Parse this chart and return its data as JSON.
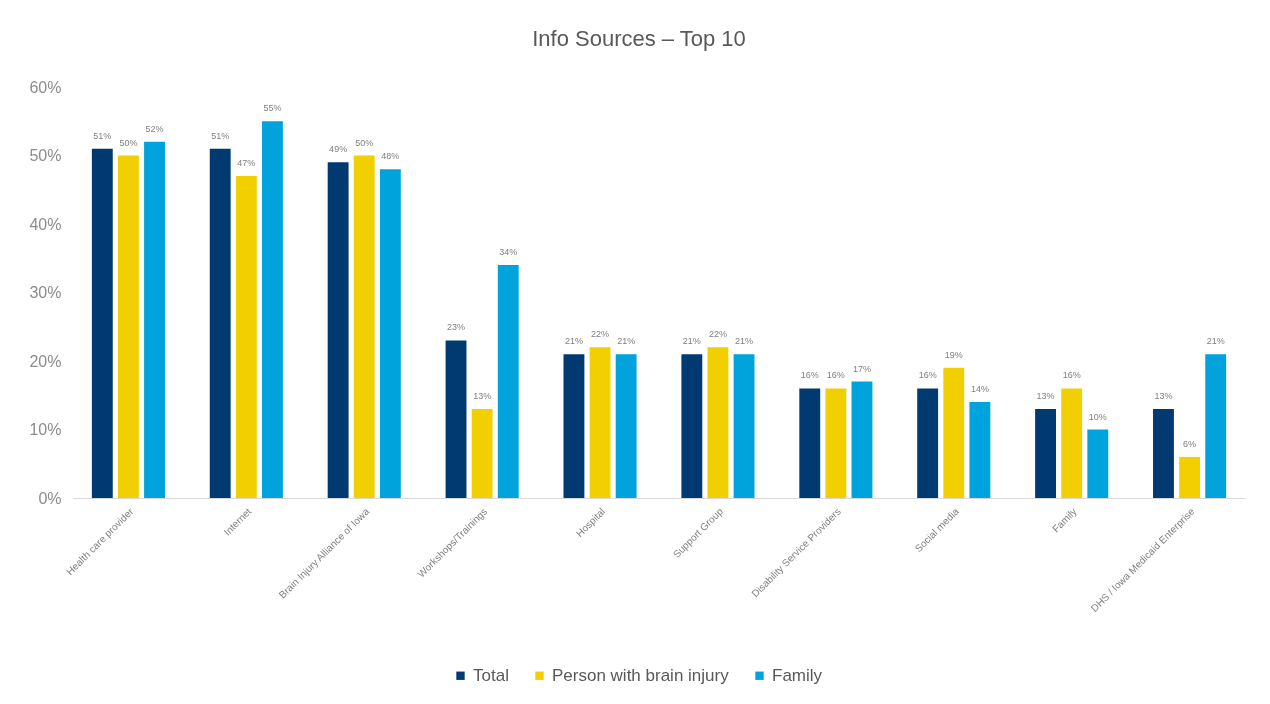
{
  "chart_data": {
    "type": "bar",
    "title": "Info Sources – Top 10",
    "categories": [
      "Health care provider",
      "Internet",
      "Brain Injury Alliance of Iowa",
      "Workshops/Trainings",
      "Hospital",
      "Support Group",
      "Disability Service Providers",
      "Social media",
      "Family",
      "DHS / Iowa Medicaid Enterprise"
    ],
    "series": [
      {
        "name": "Total",
        "color": "#003a70",
        "values": [
          51,
          51,
          49,
          23,
          21,
          21,
          16,
          16,
          13,
          13
        ],
        "value_labels": [
          "51%",
          "51%",
          "49%",
          "23%",
          "21%",
          "21%",
          "16%",
          "16%",
          "13%",
          "13%"
        ]
      },
      {
        "name": "Person with brain injury",
        "color": "#f2cf00",
        "values": [
          50,
          47,
          50,
          13,
          22,
          22,
          16,
          19,
          16,
          6
        ],
        "value_labels": [
          "50%",
          "47%",
          "50%",
          "13%",
          "22%",
          "22%",
          "16%",
          "19%",
          "16%",
          "6%"
        ]
      },
      {
        "name": "Family",
        "color": "#00a3dc",
        "values": [
          52,
          55,
          48,
          34,
          21,
          21,
          17,
          14,
          10,
          21
        ],
        "value_labels": [
          "52%",
          "55%",
          "48%",
          "34%",
          "21%",
          "21%",
          "17%",
          "14%",
          "10%",
          "21%"
        ]
      }
    ],
    "ylim": [
      0,
      60
    ],
    "yticks": [
      {
        "value": 0,
        "label": "0%"
      },
      {
        "value": 10,
        "label": "10%"
      },
      {
        "value": 20,
        "label": "20%"
      },
      {
        "value": 30,
        "label": "30%"
      },
      {
        "value": 40,
        "label": "40%"
      },
      {
        "value": 50,
        "label": "50%"
      },
      {
        "value": 60,
        "label": "60%"
      }
    ],
    "grid": false,
    "legend": "bottom"
  }
}
